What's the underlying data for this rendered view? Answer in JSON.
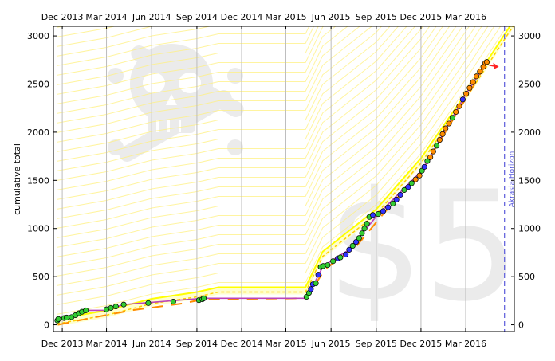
{
  "chart_data": {
    "type": "line",
    "title": "",
    "xlabel": "",
    "ylabel": "cumulative total",
    "watermark_text": "$5",
    "x_tick_labels": [
      "Dec 2013",
      "Mar 2014",
      "Jun 2014",
      "Sep 2014",
      "Dec 2014",
      "Mar 2015",
      "Jun 2015",
      "Sep 2015",
      "Dec 2015",
      "Mar 2016"
    ],
    "x_ticks": [
      "2013-12-01",
      "2014-03-01",
      "2014-06-01",
      "2014-09-01",
      "2014-12-01",
      "2015-03-01",
      "2015-06-01",
      "2015-09-01",
      "2015-12-01",
      "2016-03-01"
    ],
    "xlim": [
      "2013-11-13",
      "2016-06-08"
    ],
    "ylim": [
      -70,
      3100
    ],
    "y_ticks": [
      0,
      500,
      1000,
      1500,
      2000,
      2500,
      3000
    ],
    "grid": "vertical",
    "akrasia_horizon": {
      "label": "Akrasia Horizon",
      "date": "2016-05-19"
    },
    "colors": {
      "road": "#ffff00",
      "road_fill": "#ffffcc",
      "guidelines": "#fff080",
      "data_line": "#bb44bb",
      "moving_avg": "#ff8c00",
      "point_green": "#33cc33",
      "point_blue": "#3333ff",
      "point_orange": "#ff8c00",
      "horizon": "#6666dd",
      "arrow": "#ff2222"
    },
    "road": [
      {
        "x": "2013-11-20",
        "y": 10
      },
      {
        "x": "2014-03-01",
        "y": 100
      },
      {
        "x": "2014-06-01",
        "y": 220
      },
      {
        "x": "2014-09-01",
        "y": 290
      },
      {
        "x": "2014-10-15",
        "y": 340
      },
      {
        "x": "2015-04-10",
        "y": 340
      },
      {
        "x": "2015-05-15",
        "y": 710
      },
      {
        "x": "2015-09-01",
        "y": 1150
      },
      {
        "x": "2015-12-01",
        "y": 1680
      },
      {
        "x": "2016-03-01",
        "y": 2350
      },
      {
        "x": "2016-06-08",
        "y": 3120
      }
    ],
    "series": [
      {
        "x": [
          "2013-11-21",
          "2013-11-23",
          "2013-12-05",
          "2013-12-10",
          "2013-12-20",
          "2013-12-28",
          "2014-01-04",
          "2014-01-10",
          "2014-01-18",
          "2014-03-01",
          "2014-03-10",
          "2014-03-20",
          "2014-04-05",
          "2014-05-25",
          "2014-07-15",
          "2014-09-05",
          "2014-09-12",
          "2014-09-15",
          "2015-04-12",
          "2015-04-17",
          "2015-04-21",
          "2015-04-25",
          "2015-05-01",
          "2015-05-06",
          "2015-05-11",
          "2015-05-16",
          "2015-05-25",
          "2015-06-05",
          "2015-06-15",
          "2015-06-20",
          "2015-07-01",
          "2015-07-08",
          "2015-07-15",
          "2015-07-22",
          "2015-07-28",
          "2015-08-03",
          "2015-08-08",
          "2015-08-13",
          "2015-08-18",
          "2015-08-25",
          "2015-09-05",
          "2015-09-15",
          "2015-09-25",
          "2015-10-05",
          "2015-10-12",
          "2015-10-20",
          "2015-10-28",
          "2015-11-05",
          "2015-11-12",
          "2015-11-20",
          "2015-11-28",
          "2015-12-03",
          "2015-12-08",
          "2015-12-14",
          "2015-12-20",
          "2015-12-26",
          "2016-01-02",
          "2016-01-08",
          "2016-01-14",
          "2016-01-20",
          "2016-01-27",
          "2016-02-03",
          "2016-02-10",
          "2016-02-17",
          "2016-02-24",
          "2016-03-02",
          "2016-03-09",
          "2016-03-16",
          "2016-03-23",
          "2016-03-30",
          "2016-04-06",
          "2016-04-10",
          "2016-04-13"
        ],
        "y": [
          45,
          60,
          70,
          75,
          80,
          100,
          120,
          135,
          150,
          160,
          175,
          190,
          210,
          225,
          240,
          255,
          265,
          275,
          290,
          330,
          370,
          420,
          430,
          520,
          600,
          610,
          620,
          660,
          690,
          700,
          730,
          780,
          820,
          860,
          900,
          950,
          1000,
          1050,
          1120,
          1140,
          1150,
          1180,
          1220,
          1260,
          1300,
          1350,
          1400,
          1430,
          1470,
          1510,
          1550,
          1600,
          1640,
          1700,
          1740,
          1800,
          1860,
          1920,
          1980,
          2040,
          2090,
          2150,
          2210,
          2270,
          2340,
          2400,
          2460,
          2520,
          2580,
          2630,
          2680,
          2720,
          2730
        ],
        "colors": [
          "green",
          "green",
          "green",
          "green",
          "green",
          "green",
          "green",
          "green",
          "green",
          "green",
          "green",
          "green",
          "green",
          "green",
          "green",
          "green",
          "green",
          "green",
          "green",
          "green",
          "blue",
          "blue",
          "green",
          "blue",
          "green",
          "green",
          "green",
          "green",
          "blue",
          "green",
          "blue",
          "blue",
          "green",
          "blue",
          "green",
          "green",
          "green",
          "green",
          "green",
          "blue",
          "green",
          "blue",
          "blue",
          "green",
          "blue",
          "blue",
          "green",
          "blue",
          "green",
          "orange",
          "orange",
          "green",
          "blue",
          "green",
          "orange",
          "orange",
          "green",
          "orange",
          "orange",
          "orange",
          "orange",
          "green",
          "orange",
          "orange",
          "blue",
          "orange",
          "orange",
          "orange",
          "orange",
          "orange",
          "orange",
          "orange",
          "orange"
        ]
      }
    ],
    "data_line": [
      {
        "x": "2013-11-20",
        "y": 40
      },
      {
        "x": "2014-01-18",
        "y": 150
      },
      {
        "x": "2014-03-01",
        "y": 150
      },
      {
        "x": "2014-04-05",
        "y": 210
      },
      {
        "x": "2014-09-15",
        "y": 275
      },
      {
        "x": "2015-04-12",
        "y": 275
      },
      {
        "x": "2015-05-16",
        "y": 610
      },
      {
        "x": "2015-07-08",
        "y": 780
      },
      {
        "x": "2015-09-05",
        "y": 1150
      },
      {
        "x": "2015-12-03",
        "y": 1600
      },
      {
        "x": "2016-03-02",
        "y": 2400
      },
      {
        "x": "2016-04-13",
        "y": 2730
      }
    ],
    "moving_avg": [
      {
        "x": "2013-11-22",
        "y": 0
      },
      {
        "x": "2014-01-18",
        "y": 60
      },
      {
        "x": "2014-03-10",
        "y": 110
      },
      {
        "x": "2014-04-20",
        "y": 150
      },
      {
        "x": "2014-08-01",
        "y": 220
      },
      {
        "x": "2014-09-15",
        "y": 265
      },
      {
        "x": "2015-04-12",
        "y": 275
      },
      {
        "x": "2015-05-20",
        "y": 580
      },
      {
        "x": "2015-07-20",
        "y": 800
      },
      {
        "x": "2015-09-10",
        "y": 1120
      },
      {
        "x": "2015-12-05",
        "y": 1620
      },
      {
        "x": "2016-03-05",
        "y": 2380
      },
      {
        "x": "2016-04-13",
        "y": 2720
      }
    ]
  }
}
